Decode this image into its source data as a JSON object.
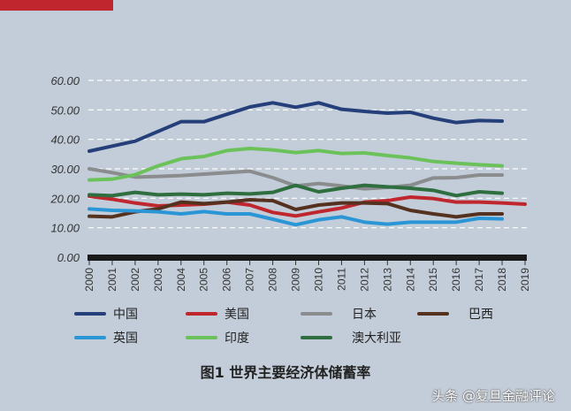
{
  "chart_data": {
    "type": "line",
    "title": "图1  世界主要经济体储蓄率",
    "xlabel": "",
    "ylabel": "",
    "x": [
      2000,
      2001,
      2002,
      2003,
      2004,
      2005,
      2006,
      2007,
      2008,
      2009,
      2010,
      2011,
      2012,
      2013,
      2014,
      2015,
      2016,
      2017,
      2018,
      2019
    ],
    "ylim": [
      0,
      60
    ],
    "yticks": [
      "0.00",
      "10.00",
      "20.00",
      "30.00",
      "40.00",
      "50.00",
      "60.00"
    ],
    "grid": true,
    "legend_placement": "bottom",
    "series": [
      {
        "name": "中国",
        "color": "#253f7a",
        "values": [
          36.0,
          37.7,
          39.4,
          42.7,
          46.0,
          46.0,
          48.5,
          51.0,
          52.4,
          50.9,
          52.4,
          50.2,
          49.5,
          48.9,
          49.2,
          47.2,
          45.7,
          46.4,
          46.2,
          null
        ]
      },
      {
        "name": "美国",
        "color": "#c0262d",
        "values": [
          20.7,
          19.7,
          18.4,
          17.4,
          17.7,
          18.0,
          18.7,
          17.7,
          15.2,
          14.0,
          15.4,
          16.7,
          18.7,
          19.2,
          20.4,
          19.9,
          18.7,
          18.7,
          18.4,
          18.0
        ]
      },
      {
        "name": "日本",
        "color": "#8a8c8e",
        "values": [
          30.0,
          28.7,
          27.2,
          27.4,
          27.7,
          28.2,
          28.7,
          29.2,
          27.0,
          24.2,
          25.0,
          24.2,
          23.2,
          23.7,
          24.4,
          26.9,
          27.0,
          27.9,
          27.9,
          null
        ]
      },
      {
        "name": "巴西",
        "color": "#55311f",
        "values": [
          13.9,
          13.7,
          15.4,
          16.4,
          18.7,
          18.2,
          18.7,
          19.5,
          19.2,
          16.2,
          17.7,
          18.4,
          18.4,
          18.2,
          15.9,
          14.7,
          13.7,
          14.7,
          14.7,
          null
        ]
      },
      {
        "name": "英国",
        "color": "#2b96d6",
        "values": [
          16.4,
          15.9,
          15.7,
          15.4,
          14.7,
          15.5,
          14.7,
          14.7,
          12.9,
          11.0,
          12.7,
          13.7,
          11.9,
          11.2,
          11.9,
          11.9,
          11.9,
          13.2,
          13.0,
          null
        ]
      },
      {
        "name": "印度",
        "color": "#6cc25a",
        "values": [
          26.2,
          26.5,
          28.0,
          31.0,
          33.4,
          34.2,
          36.2,
          36.9,
          36.4,
          35.5,
          36.2,
          35.2,
          35.4,
          34.5,
          33.7,
          32.5,
          31.9,
          31.4,
          31.0,
          null
        ]
      },
      {
        "name": "澳大利亚",
        "color": "#2f6e3e",
        "values": [
          21.2,
          20.9,
          22.0,
          21.2,
          21.4,
          21.2,
          21.7,
          21.5,
          22.0,
          24.4,
          22.2,
          23.4,
          24.4,
          23.9,
          23.4,
          22.7,
          20.9,
          22.2,
          21.7,
          null
        ]
      }
    ]
  },
  "watermark": "头条 @复旦金融评论"
}
